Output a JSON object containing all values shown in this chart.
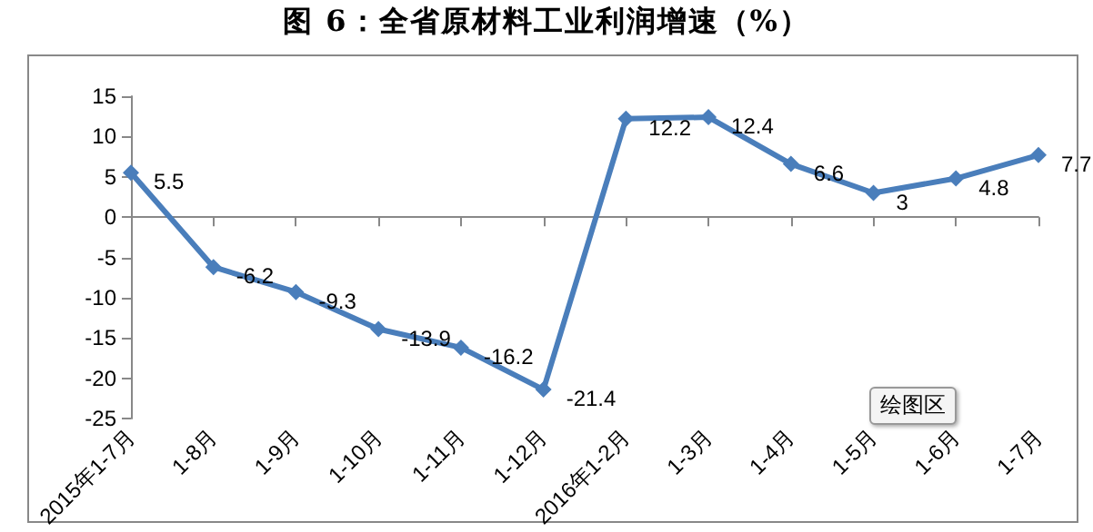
{
  "chart_data": {
    "type": "line",
    "title": "图 6：全省原材料工业利润增速（%）",
    "categories": [
      "2015年1-7月",
      "1-8月",
      "1-9月",
      "1-10月",
      "1-11月",
      "1-12月",
      "2016年1-2月",
      "1-3月",
      "1-4月",
      "1-5月",
      "1-6月",
      "1-7月"
    ],
    "series": [
      {
        "color": "#4a7ebb",
        "values": [
          5.5,
          -6.2,
          -9.3,
          -13.9,
          -16.2,
          -21.4,
          12.2,
          12.4,
          6.6,
          3,
          4.8,
          7.7
        ]
      }
    ],
    "ylim": [
      -25,
      15
    ],
    "yticks": [
      -25,
      -20,
      -15,
      -10,
      -5,
      0,
      5,
      10,
      15
    ],
    "data_labels": true,
    "marker": "diamond",
    "annotations": [
      "绘图区"
    ]
  }
}
